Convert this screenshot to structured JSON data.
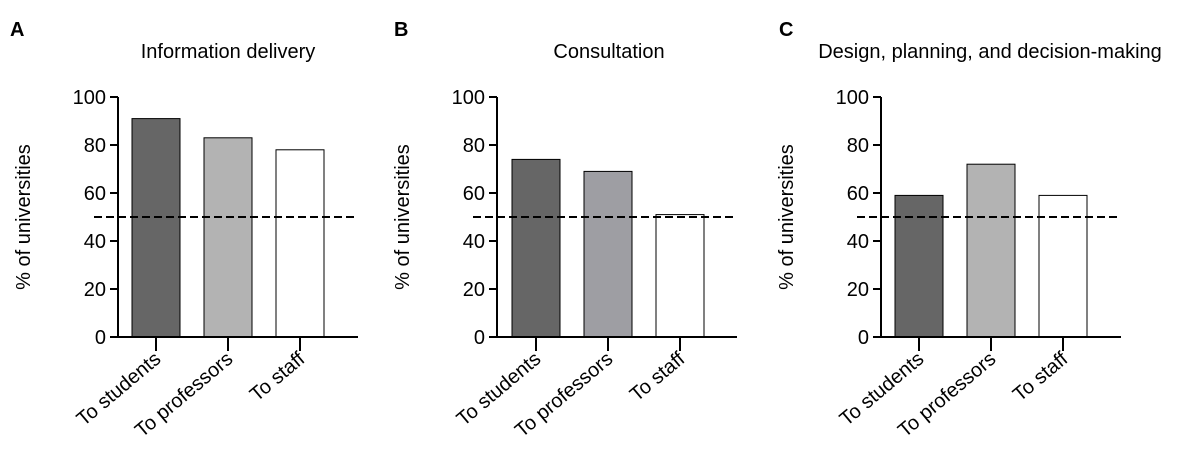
{
  "chart_data": [
    {
      "type": "bar",
      "panel": "A",
      "title": "Information delivery",
      "ylabel": "% of universities",
      "xlabel": "",
      "ylim": [
        0,
        100
      ],
      "yticks": [
        0,
        20,
        40,
        60,
        80,
        100
      ],
      "categories": [
        "To students",
        "To professors",
        "To staff"
      ],
      "values": [
        91,
        83,
        78
      ],
      "bar_colors": [
        "#666666",
        "#b3b3b3",
        "#ffffff"
      ],
      "reference_line": 50,
      "grid": false
    },
    {
      "type": "bar",
      "panel": "B",
      "title": "Consultation",
      "ylabel": "% of universities",
      "xlabel": "",
      "ylim": [
        0,
        100
      ],
      "yticks": [
        0,
        20,
        40,
        60,
        80,
        100
      ],
      "categories": [
        "To students",
        "To professors",
        "To staff"
      ],
      "values": [
        74,
        69,
        51
      ],
      "bar_colors": [
        "#666666",
        "#9e9ea3",
        "#ffffff"
      ],
      "reference_line": 50,
      "grid": false
    },
    {
      "type": "bar",
      "panel": "C",
      "title": "Design, planning, and decision-making",
      "ylabel": "% of universities",
      "xlabel": "",
      "ylim": [
        0,
        100
      ],
      "yticks": [
        0,
        20,
        40,
        60,
        80,
        100
      ],
      "categories": [
        "To students",
        "To professors",
        "To staff"
      ],
      "values": [
        59,
        72,
        59
      ],
      "bar_colors": [
        "#666666",
        "#b3b3b3",
        "#ffffff"
      ],
      "reference_line": 50,
      "grid": false
    }
  ]
}
